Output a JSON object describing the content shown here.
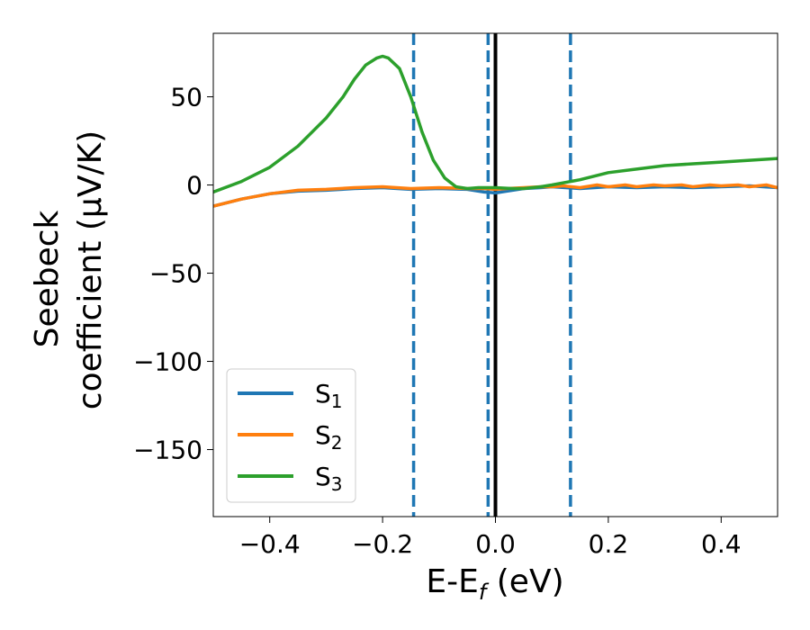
{
  "chart_data": {
    "type": "line",
    "xlabel": {
      "main": "E-E",
      "sub": "f",
      "unit": " (eV)"
    },
    "ylabel": {
      "line1": "Seebeck",
      "line2": "coefficient  (μV/K)"
    },
    "xlim": [
      -0.5,
      0.5
    ],
    "ylim": [
      -188,
      86
    ],
    "xticks": [
      -0.4,
      -0.2,
      0.0,
      0.2,
      0.4
    ],
    "xtick_labels": [
      "−0.4",
      "−0.2",
      "0.0",
      "0.2",
      "0.4"
    ],
    "yticks": [
      50,
      0,
      -50,
      -100,
      -150
    ],
    "ytick_labels": [
      "50",
      "0",
      "−50",
      "−100",
      "−150"
    ],
    "grid": false,
    "legend_position": "lower-left",
    "vlines": [
      {
        "x": -0.145,
        "style": "dashed",
        "color": "#1f77b4"
      },
      {
        "x": -0.013,
        "style": "dashed",
        "color": "#1f77b4"
      },
      {
        "x": 0.0,
        "style": "solid",
        "color": "#000000"
      },
      {
        "x": 0.133,
        "style": "dashed",
        "color": "#1f77b4"
      }
    ],
    "series": [
      {
        "name": "S",
        "sub": "1",
        "color": "#1f77b4",
        "x": [
          -0.5,
          -0.45,
          -0.4,
          -0.35,
          -0.3,
          -0.25,
          -0.2,
          -0.15,
          -0.1,
          -0.05,
          -0.02,
          0.0,
          0.02,
          0.05,
          0.08,
          0.1,
          0.15,
          0.2,
          0.25,
          0.3,
          0.35,
          0.4,
          0.45,
          0.5
        ],
        "y": [
          -12,
          -8,
          -5,
          -3.5,
          -3,
          -2,
          -1.5,
          -2.5,
          -2,
          -2.5,
          -4,
          -4.5,
          -3.5,
          -2,
          -1.5,
          -1,
          -2,
          -1,
          -1.5,
          -1,
          -1.5,
          -1,
          -0.5,
          -1.5
        ]
      },
      {
        "name": "S",
        "sub": "2",
        "color": "#ff7f0e",
        "x": [
          -0.5,
          -0.45,
          -0.4,
          -0.35,
          -0.3,
          -0.25,
          -0.2,
          -0.15,
          -0.1,
          -0.05,
          -0.02,
          0.0,
          0.02,
          0.05,
          0.08,
          0.1,
          0.12,
          0.15,
          0.18,
          0.2,
          0.23,
          0.25,
          0.28,
          0.3,
          0.33,
          0.35,
          0.38,
          0.4,
          0.43,
          0.45,
          0.48,
          0.5
        ],
        "y": [
          -12,
          -8,
          -5,
          -3,
          -2.5,
          -1.5,
          -1,
          -2,
          -1.5,
          -2,
          -2,
          -2.5,
          -2,
          -1.5,
          -1,
          -1,
          -0.5,
          -1.5,
          0,
          -1,
          0,
          -1,
          0,
          -0.5,
          0,
          -1,
          0,
          -0.5,
          0,
          -1,
          0,
          -1.5
        ]
      },
      {
        "name": "S",
        "sub": "3",
        "color": "#2ca02c",
        "x": [
          -0.5,
          -0.45,
          -0.4,
          -0.35,
          -0.3,
          -0.27,
          -0.25,
          -0.23,
          -0.21,
          -0.2,
          -0.19,
          -0.17,
          -0.15,
          -0.13,
          -0.11,
          -0.09,
          -0.07,
          -0.05,
          -0.03,
          0.0,
          0.03,
          0.05,
          0.08,
          0.1,
          0.15,
          0.2,
          0.25,
          0.3,
          0.35,
          0.4,
          0.45,
          0.5
        ],
        "y": [
          -4,
          2,
          10,
          22,
          38,
          50,
          60,
          68,
          72,
          73,
          72,
          66,
          50,
          30,
          14,
          4,
          -1,
          -2,
          -1.5,
          -1.5,
          -2,
          -2,
          -1,
          0,
          3,
          7,
          9,
          11,
          12,
          13,
          14,
          15
        ]
      }
    ]
  }
}
